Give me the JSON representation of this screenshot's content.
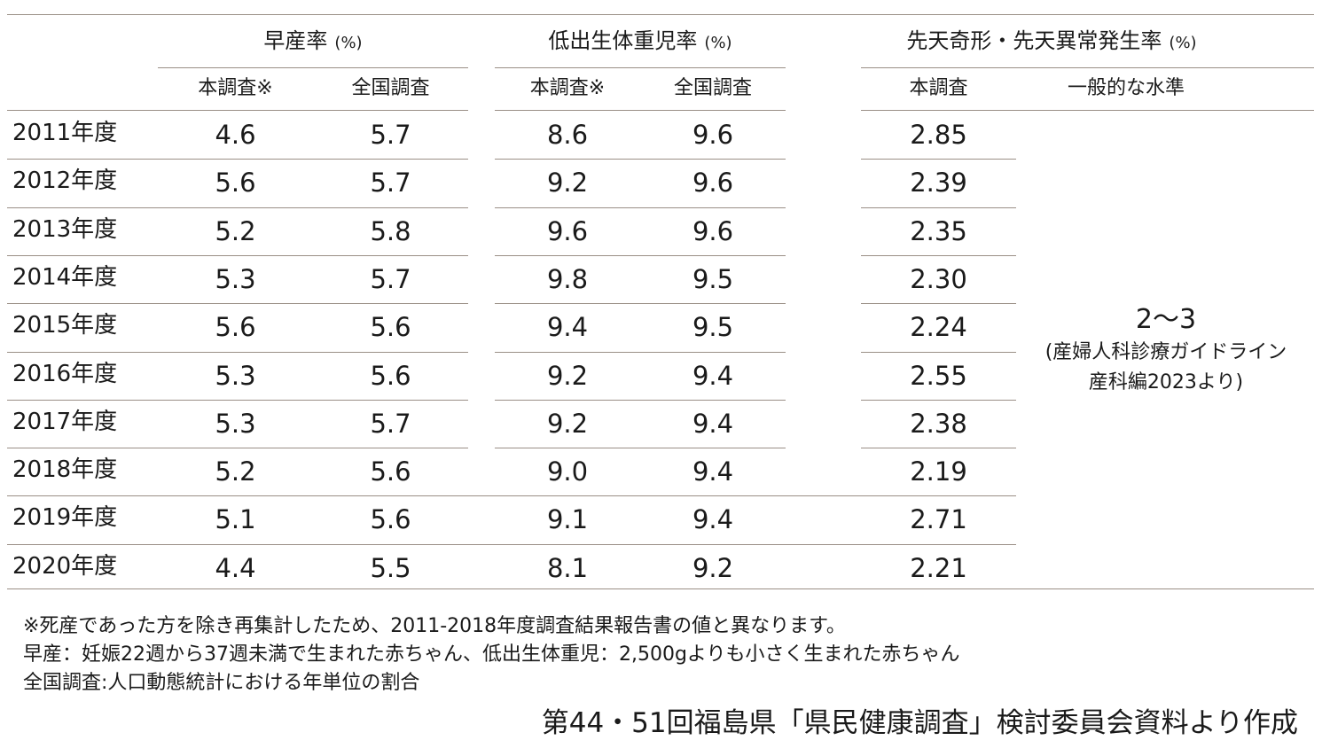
{
  "header": {
    "groups": [
      {
        "title": "早産率",
        "unit": "(%)"
      },
      {
        "title": "低出生体重児率",
        "unit": "(%)"
      },
      {
        "title": "先天奇形・先天異常発生率",
        "unit": "(%)"
      }
    ],
    "subheaders": [
      "本調査※",
      "全国調査",
      "本調査※",
      "全国調査",
      "本調査",
      "一般的な水準"
    ]
  },
  "rows": [
    {
      "year": "2011年度",
      "preterm_study": "4.6",
      "preterm_national": "5.7",
      "lbw_study": "8.6",
      "lbw_national": "9.6",
      "anomaly_study": "2.85"
    },
    {
      "year": "2012年度",
      "preterm_study": "5.6",
      "preterm_national": "5.7",
      "lbw_study": "9.2",
      "lbw_national": "9.6",
      "anomaly_study": "2.39"
    },
    {
      "year": "2013年度",
      "preterm_study": "5.2",
      "preterm_national": "5.8",
      "lbw_study": "9.6",
      "lbw_national": "9.6",
      "anomaly_study": "2.35"
    },
    {
      "year": "2014年度",
      "preterm_study": "5.3",
      "preterm_national": "5.7",
      "lbw_study": "9.8",
      "lbw_national": "9.5",
      "anomaly_study": "2.30"
    },
    {
      "year": "2015年度",
      "preterm_study": "5.6",
      "preterm_national": "5.6",
      "lbw_study": "9.4",
      "lbw_national": "9.5",
      "anomaly_study": "2.24"
    },
    {
      "year": "2016年度",
      "preterm_study": "5.3",
      "preterm_national": "5.6",
      "lbw_study": "9.2",
      "lbw_national": "9.4",
      "anomaly_study": "2.55"
    },
    {
      "year": "2017年度",
      "preterm_study": "5.3",
      "preterm_national": "5.7",
      "lbw_study": "9.2",
      "lbw_national": "9.4",
      "anomaly_study": "2.38"
    },
    {
      "year": "2018年度",
      "preterm_study": "5.2",
      "preterm_national": "5.6",
      "lbw_study": "9.0",
      "lbw_national": "9.4",
      "anomaly_study": "2.19"
    },
    {
      "year": "2019年度",
      "preterm_study": "5.1",
      "preterm_national": "5.6",
      "lbw_study": "9.1",
      "lbw_national": "9.4",
      "anomaly_study": "2.71"
    },
    {
      "year": "2020年度",
      "preterm_study": "4.4",
      "preterm_national": "5.5",
      "lbw_study": "8.1",
      "lbw_national": "9.2",
      "anomaly_study": "2.21"
    }
  ],
  "general_level": {
    "value": "2～3",
    "source_line1": "(産婦人科診療ガイドライン",
    "source_line2": "産科編2023より)"
  },
  "notes": [
    "※死産であった方を除き再集計したため、2011-2018年度調査結果報告書の値と異なります。",
    "早産：妊娠22週から37週未満で生まれた赤ちゃん、低出生体重児：2,500gよりも小さく生まれた赤ちゃん",
    "全国調査:人口動態統計における年単位の割合"
  ],
  "credit": "第44・51回福島県「県民健康調査」検討委員会資料より作成",
  "colors": {
    "rule": "#9a8f86",
    "text": "#1a1a1a"
  }
}
